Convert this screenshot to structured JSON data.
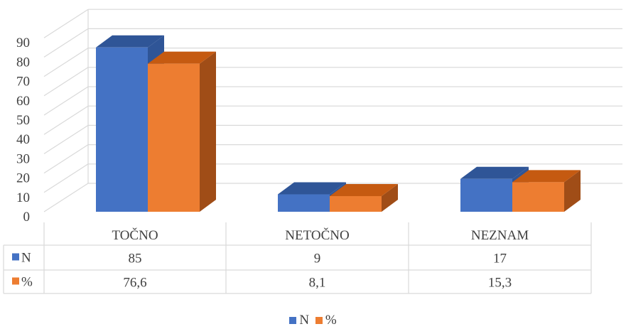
{
  "chart_data": {
    "type": "bar",
    "categories": [
      "TOČNO",
      "NETOČNO",
      "NEZNAM"
    ],
    "series": [
      {
        "name": "N",
        "values": [
          85,
          9,
          17
        ],
        "labels": [
          "85",
          "9",
          "17"
        ],
        "color": "#4472C4",
        "top_color": "#2F5597",
        "side_color": "#2F5597"
      },
      {
        "name": "%",
        "values": [
          76.6,
          8.1,
          15.3
        ],
        "labels": [
          "76,6",
          "8,1",
          "15,3"
        ],
        "color": "#ED7D31",
        "top_color": "#C55A11",
        "side_color": "#A04D17"
      }
    ],
    "ylim": [
      0,
      90
    ],
    "yticks": [
      "0",
      "10",
      "20",
      "30",
      "40",
      "50",
      "60",
      "70",
      "80",
      "90"
    ],
    "grid": true,
    "data_table": true,
    "legend": "bottom-center",
    "title": "",
    "xlabel": "",
    "ylabel": ""
  }
}
